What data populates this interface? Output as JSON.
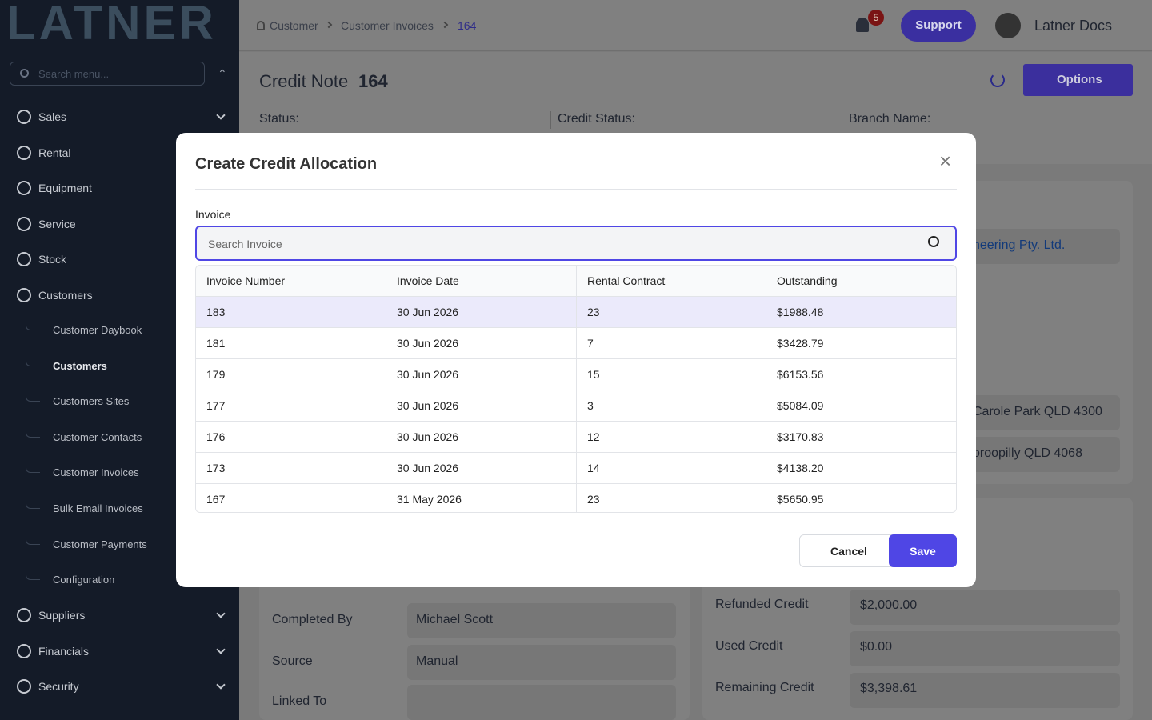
{
  "sidebar": {
    "logo": "LATNER",
    "search_placeholder": "Search menu...",
    "menu_top": [
      "Sales",
      "Rental",
      "Equipment",
      "Service",
      "Stock",
      "Customers"
    ],
    "submenu": [
      "Customer Daybook",
      "Customers",
      "Customers Sites",
      "Customer Contacts",
      "Customer Invoices",
      "Bulk Email Invoices",
      "Customer Payments",
      "Configuration"
    ],
    "menu_bottom": [
      "Suppliers",
      "Financials",
      "Security"
    ]
  },
  "topbar": {
    "breadcrumb": [
      "Customer",
      "Customer Invoices",
      "164"
    ],
    "notifications": "5",
    "support": "Support",
    "user": "Latner Docs"
  },
  "page": {
    "title": "Credit Note",
    "number": "164",
    "options": "Options",
    "status_fields": [
      "Status:",
      "Credit Status:",
      "Branch Name:"
    ],
    "right_fragments": [
      "neering Pty. Ltd.",
      "Carole Park QLD 4300",
      "oroopilly QLD 4068"
    ],
    "left_fields": [
      {
        "label": "Completed By",
        "value": "Michael Scott"
      },
      {
        "label": "Source",
        "value": "Manual"
      },
      {
        "label": "Linked To",
        "value": ""
      }
    ],
    "credit_fields": [
      {
        "label": "Refunded Credit",
        "value": "$2,000.00"
      },
      {
        "label": "Used Credit",
        "value": "$0.00"
      },
      {
        "label": "Remaining Credit",
        "value": "$3,398.61"
      }
    ]
  },
  "modal": {
    "title": "Create Credit Allocation",
    "field_label": "Invoice",
    "search_placeholder": "Search Invoice",
    "table": {
      "columns": [
        "Invoice Number",
        "Invoice Date",
        "Rental Contract",
        "Outstanding"
      ],
      "rows": [
        [
          "183",
          "30 Jun 2026",
          "23",
          "$1988.48"
        ],
        [
          "181",
          "30 Jun 2026",
          "7",
          "$3428.79"
        ],
        [
          "179",
          "30 Jun 2026",
          "15",
          "$6153.56"
        ],
        [
          "177",
          "30 Jun 2026",
          "3",
          "$5084.09"
        ],
        [
          "176",
          "30 Jun 2026",
          "12",
          "$3170.83"
        ],
        [
          "173",
          "30 Jun 2026",
          "14",
          "$4138.20"
        ],
        [
          "167",
          "31 May 2026",
          "23",
          "$5650.95"
        ]
      ]
    },
    "cancel": "Cancel",
    "save": "Save"
  }
}
